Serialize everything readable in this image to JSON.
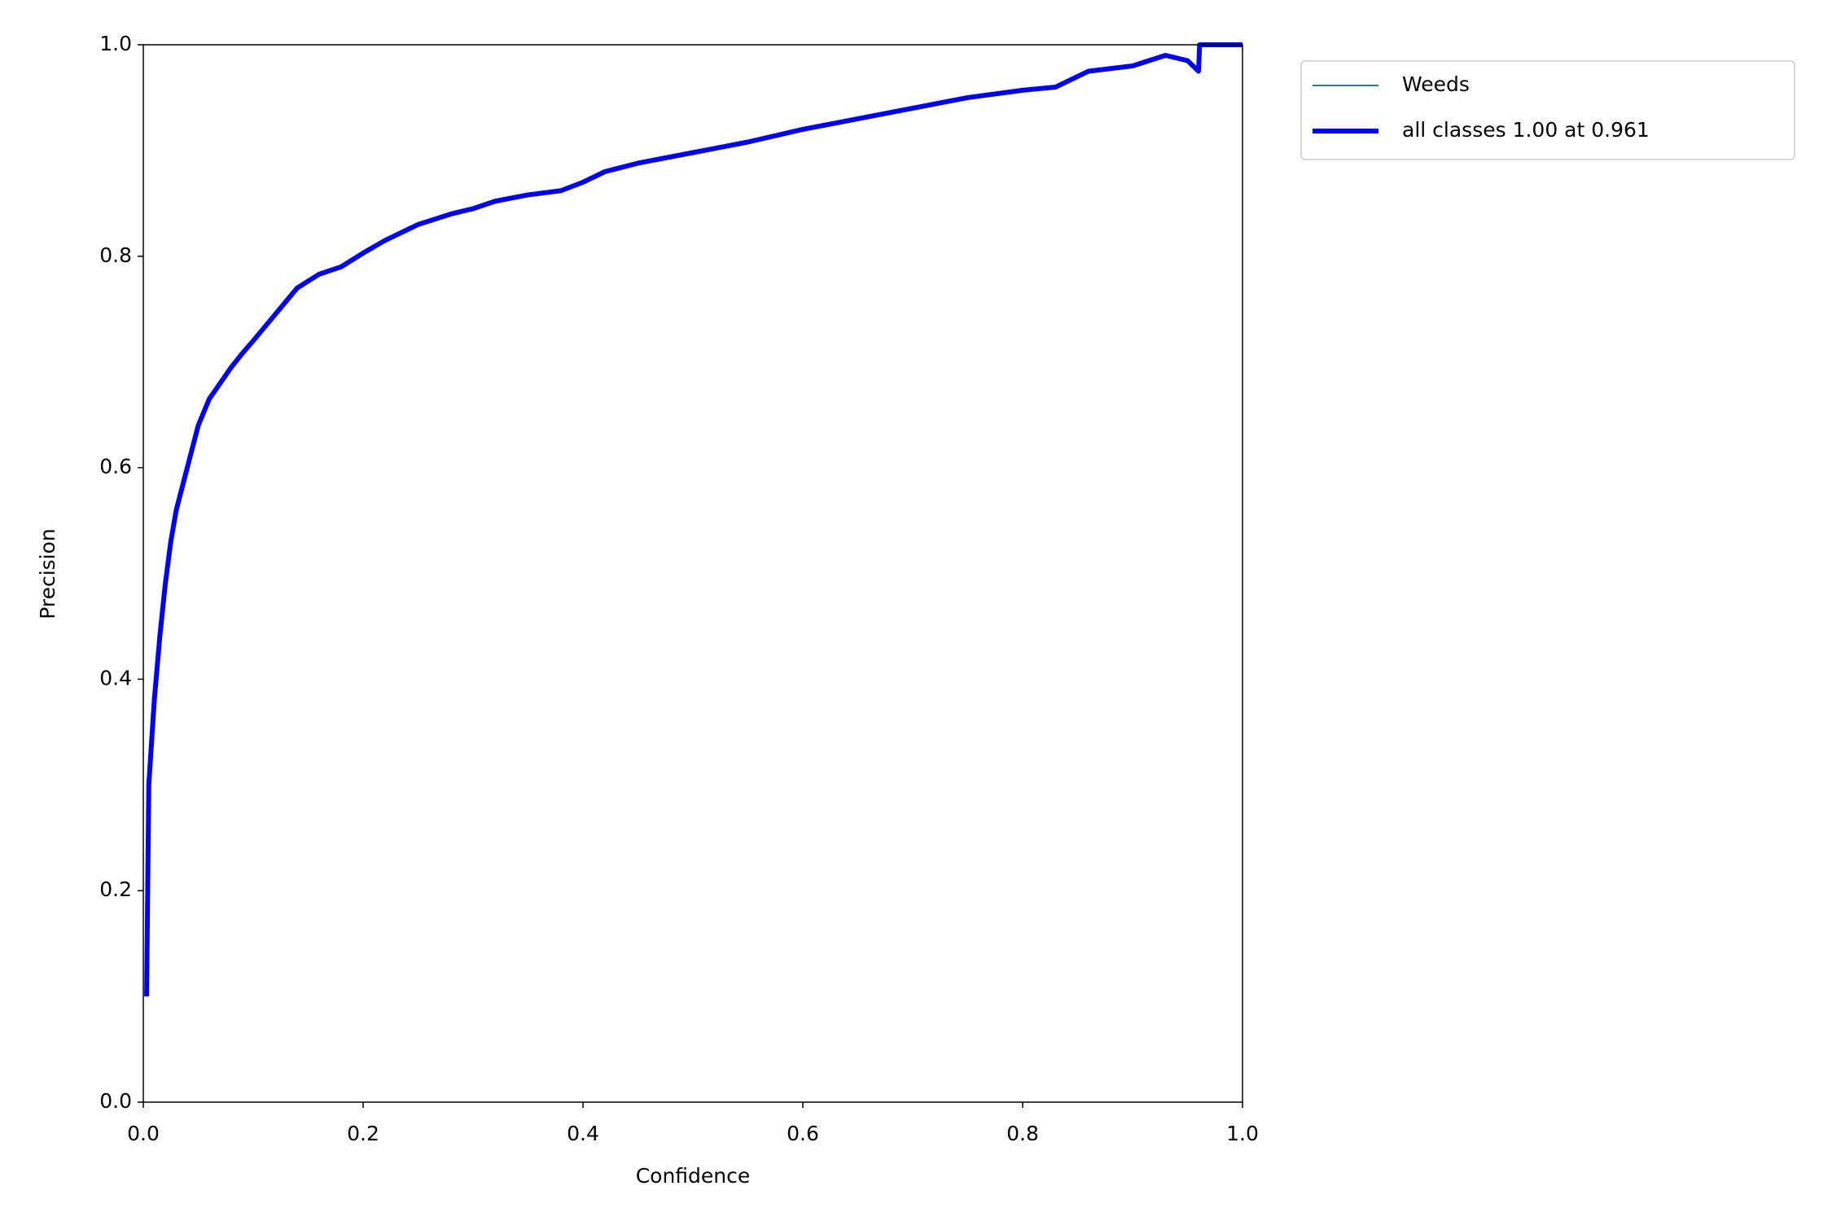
{
  "chart_data": {
    "type": "line",
    "xlabel": "Confidence",
    "ylabel": "Precision",
    "x": [
      0.003,
      0.005,
      0.01,
      0.015,
      0.02,
      0.025,
      0.03,
      0.04,
      0.05,
      0.06,
      0.07,
      0.08,
      0.09,
      0.1,
      0.12,
      0.14,
      0.16,
      0.18,
      0.2,
      0.22,
      0.25,
      0.28,
      0.3,
      0.32,
      0.35,
      0.38,
      0.4,
      0.42,
      0.45,
      0.5,
      0.55,
      0.6,
      0.65,
      0.7,
      0.75,
      0.8,
      0.83,
      0.86,
      0.9,
      0.93,
      0.95,
      0.96,
      0.961,
      1.0
    ],
    "series": [
      {
        "name": "Weeds",
        "color": "#1f77b4",
        "width": "thin",
        "values": [
          0.1,
          0.3,
          0.38,
          0.44,
          0.49,
          0.53,
          0.56,
          0.6,
          0.64,
          0.665,
          0.68,
          0.695,
          0.708,
          0.72,
          0.745,
          0.77,
          0.783,
          0.79,
          0.803,
          0.815,
          0.83,
          0.84,
          0.845,
          0.852,
          0.858,
          0.862,
          0.87,
          0.88,
          0.888,
          0.898,
          0.908,
          0.92,
          0.93,
          0.94,
          0.95,
          0.957,
          0.96,
          0.975,
          0.98,
          0.99,
          0.985,
          0.975,
          1.0,
          1.0
        ]
      },
      {
        "name": "all classes 1.00 at 0.961",
        "color": "#0000ff",
        "width": "thick",
        "values": [
          0.1,
          0.3,
          0.38,
          0.44,
          0.49,
          0.53,
          0.56,
          0.6,
          0.64,
          0.665,
          0.68,
          0.695,
          0.708,
          0.72,
          0.745,
          0.77,
          0.783,
          0.79,
          0.803,
          0.815,
          0.83,
          0.84,
          0.845,
          0.852,
          0.858,
          0.862,
          0.87,
          0.88,
          0.888,
          0.898,
          0.908,
          0.92,
          0.93,
          0.94,
          0.95,
          0.957,
          0.96,
          0.975,
          0.98,
          0.99,
          0.985,
          0.975,
          1.0,
          1.0
        ]
      }
    ],
    "xlim": [
      0,
      1
    ],
    "ylim": [
      0,
      1
    ],
    "xticks": [
      {
        "value": 0,
        "label": "0.0"
      },
      0.2,
      0.4,
      0.6,
      0.8,
      {
        "value": 1,
        "label": "1.0"
      }
    ],
    "yticks": [
      {
        "value": 0,
        "label": "0.0"
      },
      0.2,
      0.4,
      0.6,
      0.8,
      {
        "value": 1,
        "label": "1.0"
      }
    ],
    "grid": false,
    "legend": "outside upper right"
  }
}
